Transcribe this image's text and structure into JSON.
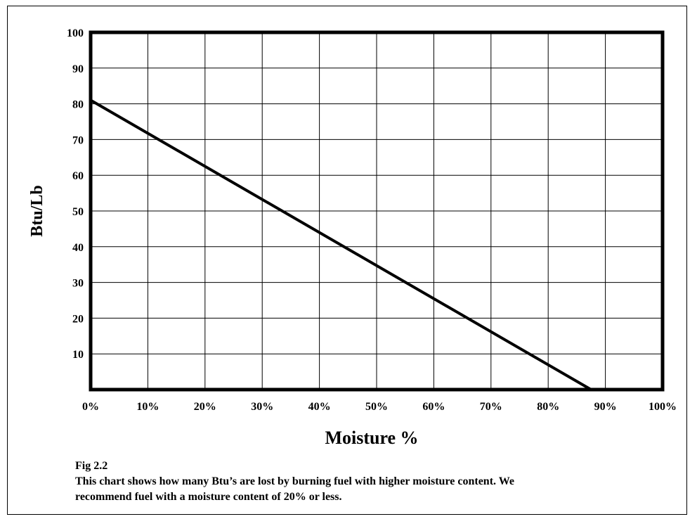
{
  "chart_data": {
    "type": "line",
    "title": "",
    "xlabel": "Moisture %",
    "ylabel": "Btu/Lb",
    "xlim": [
      0,
      100
    ],
    "ylim": [
      0,
      100
    ],
    "x_ticks": [
      0,
      10,
      20,
      30,
      40,
      50,
      60,
      70,
      80,
      90,
      100
    ],
    "x_tick_labels": [
      "0%",
      "10%",
      "20%",
      "30%",
      "40%",
      "50%",
      "60%",
      "70%",
      "80%",
      "90%",
      "100%"
    ],
    "y_ticks": [
      10,
      20,
      30,
      40,
      50,
      60,
      70,
      80,
      90,
      100
    ],
    "y_tick_labels": [
      "10",
      "20",
      "30",
      "40",
      "50",
      "60",
      "70",
      "80",
      "90",
      "100"
    ],
    "grid": true,
    "legend": "none",
    "series": [
      {
        "x": [
          0,
          87.5
        ],
        "y": [
          81,
          0
        ],
        "color": "#000000"
      }
    ]
  },
  "caption": {
    "figure_label": "Fig 2.2",
    "text_line1": "This chart shows how many Btu’s are lost by burning fuel with higher moisture content. We",
    "text_line2": "recommend fuel with a moisture content of 20% or less."
  }
}
